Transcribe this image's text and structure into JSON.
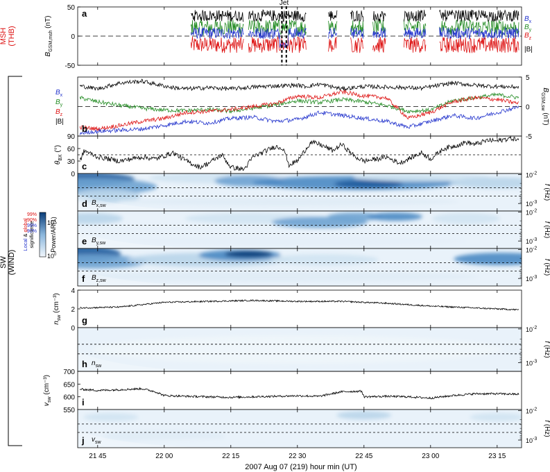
{
  "figure": {
    "xlabel": "2007 Aug 07 (219)  hour min (UT)",
    "x_ticks": [
      {
        "label": "21 45",
        "t": 45
      },
      {
        "label": "22 00",
        "t": 60
      },
      {
        "label": "22 15",
        "t": 75
      },
      {
        "label": "22 30",
        "t": 90
      },
      {
        "label": "22 45",
        "t": 105
      },
      {
        "label": "23 00",
        "t": 120
      },
      {
        "label": "23 15",
        "t": 135
      }
    ],
    "x_range_minutes_after_21": [
      40.5,
      140.5
    ],
    "msh_label_1": "MSH",
    "msh_label_2": "(THB)",
    "sw_label_1": "SW",
    "sw_label_2": "(WIND)",
    "jet_label": "Jet",
    "jet_lines_minutes_after_21": [
      86.5,
      87.5
    ],
    "colorbar": {
      "ylabel": "Power/AR(1)",
      "tick_top": "10",
      "tick_top_exp": "1",
      "tick_bottom": "10",
      "tick_bottom_exp": "0",
      "sig_title_local": "Local",
      "sig_title_amp": " & ",
      "sig_title_global": "global",
      "sig_title_2": "significance",
      "sig_red_1": "99%",
      "sig_red_2": "90%",
      "sig_blue_1": "99%",
      "sig_blue_2": "90%"
    },
    "panel_letters": [
      "a",
      "b",
      "c",
      "d",
      "e",
      "f",
      "g",
      "h",
      "i",
      "j"
    ],
    "colors": {
      "bx": "#2233cc",
      "by": "#228b22",
      "bz": "#dd1111",
      "b": "#000000",
      "spec_dark": "#0a4a8a",
      "spec_light": "#e9f2fa"
    }
  },
  "chart_data": [
    {
      "panel": "a",
      "type": "line",
      "ylabel": "B_GSM,msh (nT)",
      "ylim": [
        -50,
        50
      ],
      "yticks": [
        "50",
        "0",
        "-50"
      ],
      "legend": [
        "Bx",
        "By",
        "Bz",
        "|B|"
      ],
      "data_intervals_minutes_after_21": [
        [
          66,
          78
        ],
        [
          79,
          92
        ],
        [
          97,
          99
        ],
        [
          102,
          105
        ],
        [
          107,
          110
        ],
        [
          114,
          119
        ],
        [
          122,
          140
        ]
      ],
      "approx_levels": {
        "B": 35,
        "Bx": 5,
        "By": 15,
        "Bz": -15
      }
    },
    {
      "panel": "b",
      "type": "line",
      "ylabel": "B_GSM,sw (nT)",
      "ylim": [
        -5,
        5
      ],
      "yticks": [
        "5",
        "0",
        "-5"
      ],
      "legend": [
        "Bx",
        "By",
        "Bz",
        "|B|"
      ],
      "series": [
        {
          "name": "|B|",
          "x": [
            41,
            45,
            50,
            55,
            58,
            62,
            65,
            70,
            75,
            80,
            85,
            90,
            92,
            95,
            100,
            105,
            110,
            115,
            118,
            125,
            130,
            135,
            140
          ],
          "values": [
            3.5,
            3.0,
            4.0,
            4.3,
            3.8,
            3.2,
            3.0,
            3.2,
            3.0,
            3.3,
            3.5,
            3.6,
            3.4,
            3.8,
            3.0,
            3.4,
            3.3,
            3.2,
            3.1,
            4.0,
            3.6,
            3.4,
            3.3
          ]
        },
        {
          "name": "Bx",
          "x": [
            41,
            45,
            50,
            55,
            60,
            65,
            70,
            75,
            80,
            85,
            90,
            95,
            100,
            105,
            110,
            115,
            120,
            125,
            130,
            135,
            140
          ],
          "values": [
            -4.5,
            -4.2,
            -4.0,
            -3.8,
            -3.2,
            -2.5,
            -2.8,
            -2.0,
            -1.8,
            -2.5,
            -2.2,
            -1.0,
            -1.5,
            -2.0,
            -2.5,
            -3.5,
            -2.5,
            -1.5,
            -2.0,
            -1.0,
            0.0
          ]
        },
        {
          "name": "By",
          "x": [
            41,
            45,
            50,
            55,
            60,
            65,
            70,
            75,
            80,
            85,
            90,
            95,
            100,
            105,
            110,
            115,
            120,
            125,
            130,
            135,
            140
          ],
          "values": [
            1.5,
            0.8,
            0.2,
            -0.3,
            -0.6,
            -0.7,
            -0.5,
            -0.8,
            -0.3,
            0.3,
            1.0,
            0.7,
            1.2,
            0.8,
            0.2,
            -0.8,
            -0.6,
            1.0,
            1.5,
            2.0,
            1.5
          ]
        },
        {
          "name": "Bz",
          "x": [
            41,
            45,
            50,
            55,
            60,
            65,
            70,
            75,
            80,
            85,
            90,
            95,
            100,
            105,
            110,
            115,
            120,
            125,
            130,
            135,
            140
          ],
          "values": [
            -3.5,
            -3.8,
            -3.2,
            -2.5,
            -2.0,
            -1.0,
            -0.8,
            -0.5,
            0.0,
            0.5,
            1.8,
            1.5,
            2.5,
            1.8,
            1.5,
            -2.0,
            -1.0,
            0.8,
            1.5,
            1.2,
            0.5
          ]
        }
      ]
    },
    {
      "panel": "c",
      "type": "line",
      "ylabel": "θ_BX (°)",
      "ylim": [
        0,
        90
      ],
      "yticks": [
        "90",
        "60",
        "30",
        "0"
      ],
      "reference_line": 45,
      "series": [
        {
          "name": "theta",
          "x": [
            41,
            42,
            45,
            50,
            55,
            58,
            62,
            65,
            68,
            70,
            73,
            75,
            78,
            80,
            83,
            85,
            87,
            88,
            90,
            93,
            95,
            98,
            100,
            103,
            105,
            108,
            110,
            113,
            115,
            118,
            120,
            123,
            125,
            128,
            130,
            133,
            135,
            138,
            140
          ],
          "values": [
            30,
            55,
            40,
            30,
            40,
            35,
            50,
            30,
            15,
            25,
            45,
            15,
            10,
            40,
            55,
            65,
            60,
            20,
            30,
            75,
            70,
            55,
            70,
            40,
            30,
            35,
            40,
            25,
            35,
            50,
            35,
            60,
            65,
            75,
            70,
            80,
            78,
            85,
            80
          ]
        }
      ]
    },
    {
      "panel": "d",
      "type": "heatmap",
      "label": "Bx,sw",
      "ylabel": "f (Hz)",
      "yticks": [
        "10^-2",
        "10^-3"
      ],
      "dashed_levels": 2
    },
    {
      "panel": "e",
      "type": "heatmap",
      "label": "By,sw",
      "ylabel": "f (Hz)",
      "yticks": [
        "10^-2",
        "10^-3"
      ],
      "dashed_levels": 2
    },
    {
      "panel": "f",
      "type": "heatmap",
      "label": "Bz,sw",
      "ylabel": "f (Hz)",
      "yticks": [
        "10^-2",
        "10^-3"
      ],
      "dashed_levels": 2
    },
    {
      "panel": "g",
      "type": "line",
      "ylabel": "n_sw (cm^-3)",
      "ylim": [
        0,
        4
      ],
      "yticks": [
        "4",
        "2",
        "0"
      ],
      "series": [
        {
          "name": "n_sw",
          "x": [
            41,
            50,
            60,
            70,
            80,
            90,
            100,
            110,
            120,
            130,
            140
          ],
          "values": [
            2.1,
            2.2,
            2.7,
            2.8,
            2.9,
            2.8,
            2.8,
            2.6,
            2.3,
            2.1,
            1.9
          ]
        }
      ]
    },
    {
      "panel": "h",
      "type": "heatmap",
      "label": "n_sw",
      "ylabel": "f (Hz)",
      "yticks": [
        "10^-2",
        "10^-3"
      ],
      "dashed_levels": 2
    },
    {
      "panel": "i",
      "type": "line",
      "ylabel": "v_sw (cm^-3)",
      "ylim": [
        550,
        700
      ],
      "yticks": [
        "700",
        "650",
        "600",
        "550"
      ],
      "series": [
        {
          "name": "v_sw",
          "x": [
            41,
            45,
            50,
            55,
            58,
            60,
            65,
            70,
            75,
            80,
            85,
            90,
            95,
            100,
            104.5,
            105,
            110,
            115,
            120,
            125,
            130,
            135,
            140
          ],
          "values": [
            630,
            625,
            628,
            632,
            620,
            605,
            602,
            600,
            598,
            600,
            602,
            604,
            602,
            620,
            622,
            600,
            602,
            600,
            595,
            605,
            612,
            612,
            610
          ]
        }
      ]
    },
    {
      "panel": "j",
      "type": "heatmap",
      "label": "v_sw",
      "ylabel": "f (Hz)",
      "yticks": [
        "10^-2",
        "10^-3"
      ],
      "dashed_levels": 2
    }
  ]
}
